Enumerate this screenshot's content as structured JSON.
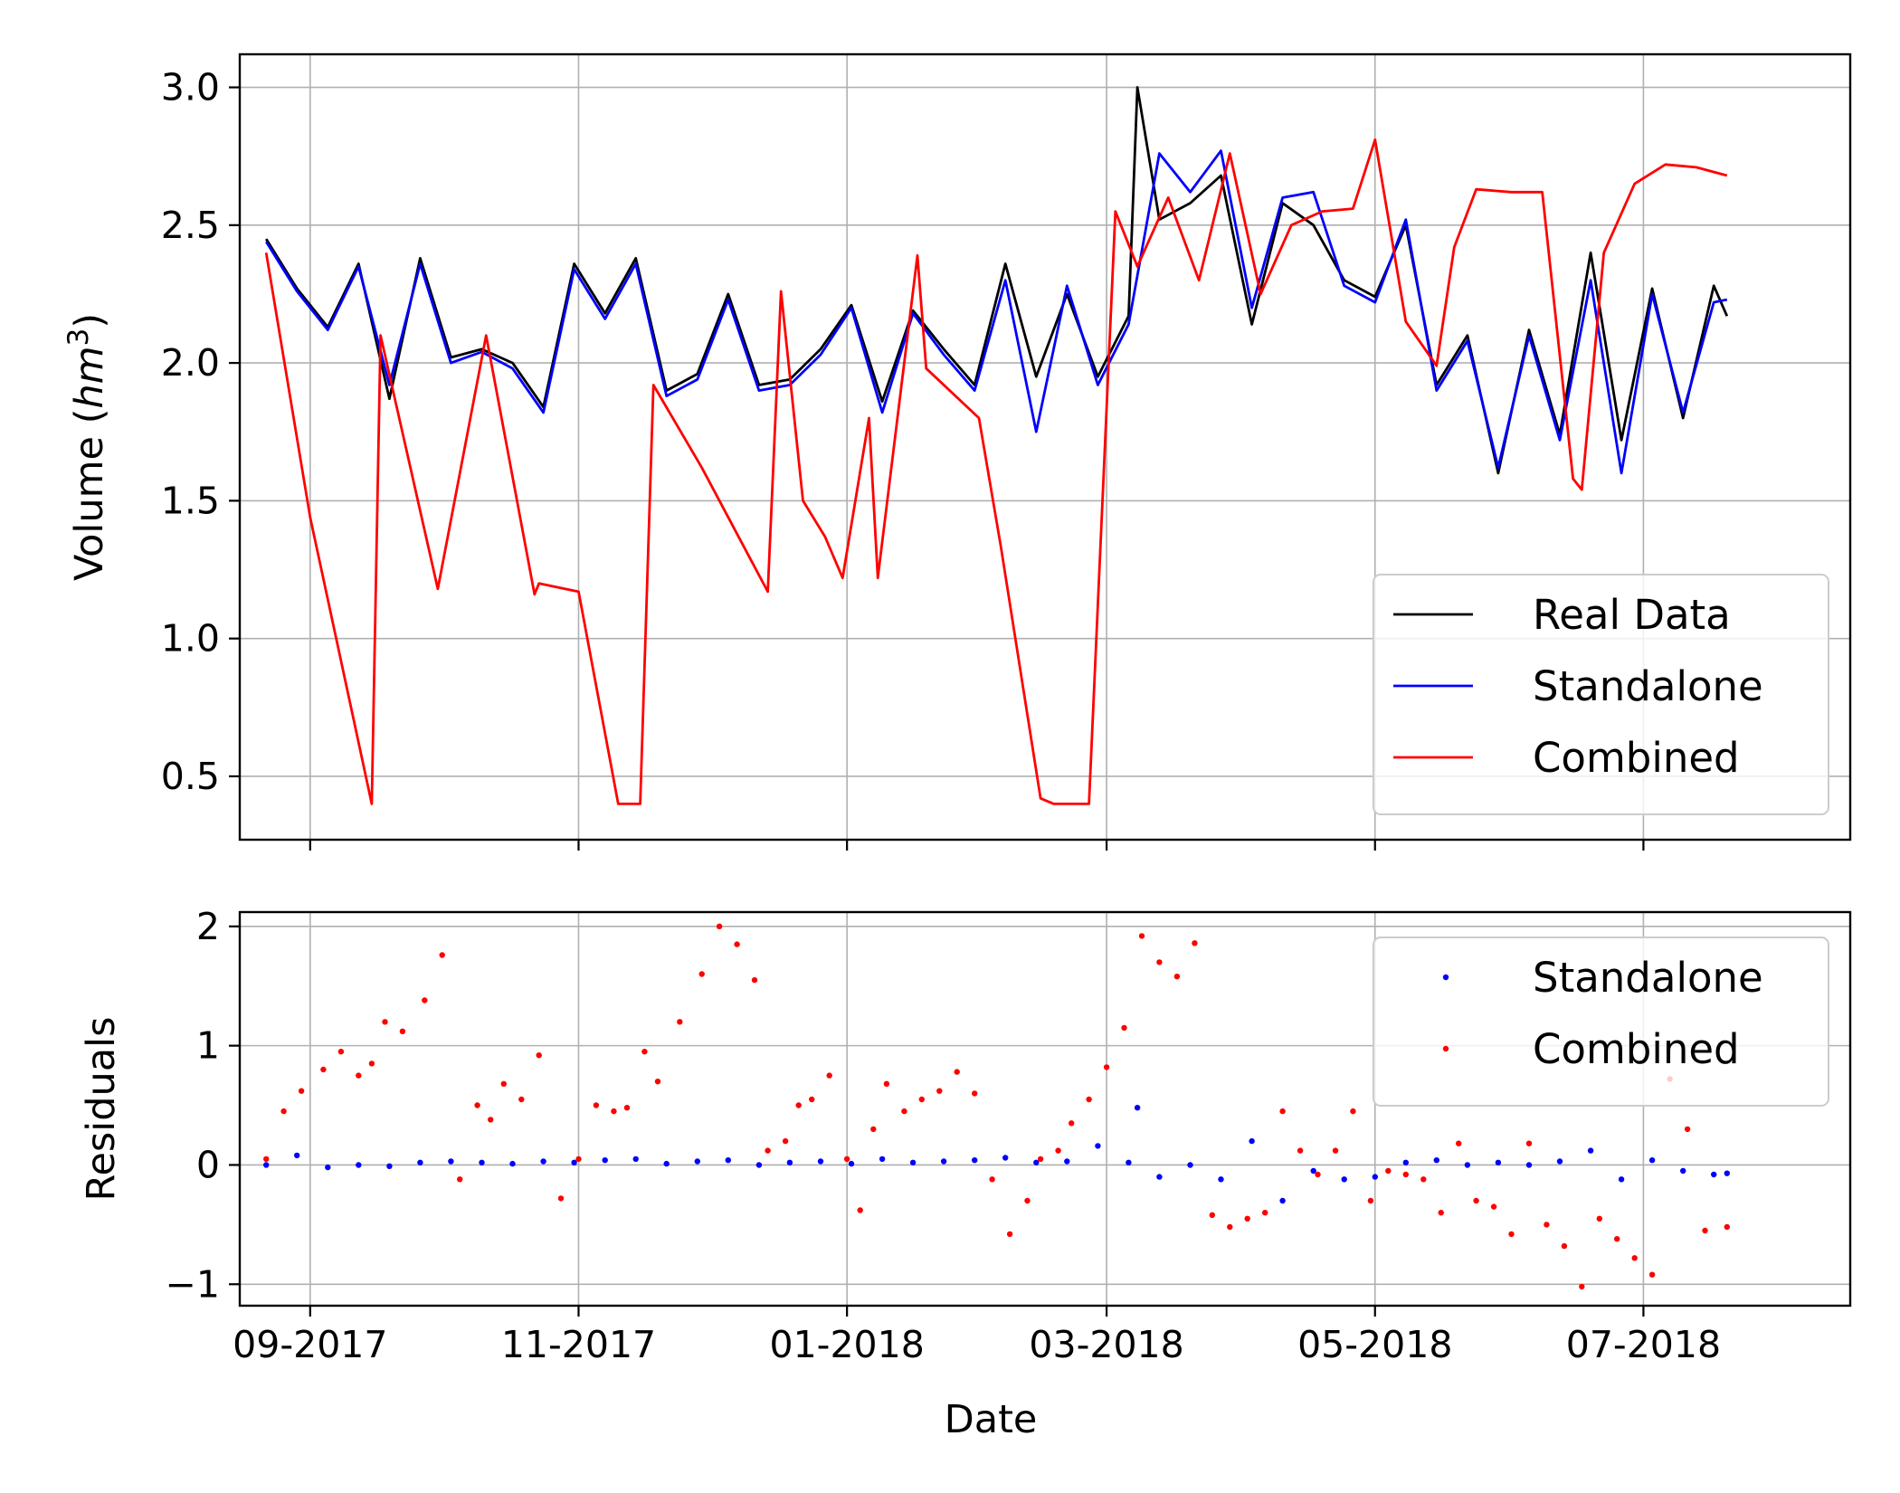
{
  "chart_data": [
    {
      "type": "line",
      "xlabel": "",
      "ylabel": "Volume (hm3)",
      "ylabel_parts": {
        "prefix": "Volume (",
        "var": "hm",
        "sup": "3",
        "suffix": ")"
      },
      "xlim": [
        "2017-08-16",
        "2018-08-17"
      ],
      "ylim": [
        0.27,
        3.12
      ],
      "yticks": [
        "0.5",
        "1.0",
        "1.5",
        "2.0",
        "2.5",
        "3.0"
      ],
      "ytick_values": [
        0.5,
        1.0,
        1.5,
        2.0,
        2.5,
        3.0
      ],
      "xticks": [
        "2017-09-01",
        "2017-11-01",
        "2018-01-01",
        "2018-03-01",
        "2018-05-01",
        "2018-07-01"
      ],
      "grid": true,
      "legend_position": "lower-right",
      "series": [
        {
          "name": "Real Data",
          "color": "#000000",
          "x": [
            "2017-08-22",
            "2017-08-29",
            "2017-09-05",
            "2017-09-12",
            "2017-09-19",
            "2017-09-26",
            "2017-10-03",
            "2017-10-10",
            "2017-10-17",
            "2017-10-24",
            "2017-10-31",
            "2017-11-07",
            "2017-11-14",
            "2017-11-21",
            "2017-11-28",
            "2017-12-05",
            "2017-12-12",
            "2017-12-19",
            "2017-12-26",
            "2018-01-02",
            "2018-01-09",
            "2018-01-16",
            "2018-01-23",
            "2018-01-30",
            "2018-02-06",
            "2018-02-13",
            "2018-02-20",
            "2018-02-27",
            "2018-03-06",
            "2018-03-08",
            "2018-03-13",
            "2018-03-20",
            "2018-03-27",
            "2018-04-03",
            "2018-04-10",
            "2018-04-17",
            "2018-04-24",
            "2018-05-01",
            "2018-05-08",
            "2018-05-15",
            "2018-05-22",
            "2018-05-29",
            "2018-06-05",
            "2018-06-12",
            "2018-06-19",
            "2018-06-26",
            "2018-07-03",
            "2018-07-10",
            "2018-07-17",
            "2018-07-20"
          ],
          "values": [
            2.45,
            2.27,
            2.13,
            2.36,
            1.87,
            2.38,
            2.02,
            2.05,
            2.0,
            1.84,
            2.36,
            2.18,
            2.38,
            1.9,
            1.96,
            2.25,
            1.92,
            1.94,
            2.05,
            2.21,
            1.86,
            2.19,
            2.05,
            1.92,
            2.36,
            1.95,
            2.25,
            1.95,
            2.17,
            3.0,
            2.52,
            2.58,
            2.68,
            2.14,
            2.58,
            2.5,
            2.3,
            2.24,
            2.5,
            1.92,
            2.1,
            1.6,
            2.12,
            1.74,
            2.4,
            1.72,
            2.27,
            1.8,
            2.28,
            2.17
          ]
        },
        {
          "name": "Standalone",
          "color": "#0000ff",
          "x": [
            "2017-08-22",
            "2017-08-29",
            "2017-09-05",
            "2017-09-12",
            "2017-09-19",
            "2017-09-26",
            "2017-10-03",
            "2017-10-10",
            "2017-10-17",
            "2017-10-24",
            "2017-10-31",
            "2017-11-07",
            "2017-11-14",
            "2017-11-21",
            "2017-11-28",
            "2017-12-05",
            "2017-12-12",
            "2017-12-19",
            "2017-12-26",
            "2018-01-02",
            "2018-01-09",
            "2018-01-16",
            "2018-01-23",
            "2018-01-30",
            "2018-02-06",
            "2018-02-13",
            "2018-02-20",
            "2018-02-27",
            "2018-03-06",
            "2018-03-13",
            "2018-03-20",
            "2018-03-27",
            "2018-04-03",
            "2018-04-10",
            "2018-04-17",
            "2018-04-24",
            "2018-05-01",
            "2018-05-08",
            "2018-05-15",
            "2018-05-22",
            "2018-05-29",
            "2018-06-05",
            "2018-06-12",
            "2018-06-19",
            "2018-06-26",
            "2018-07-03",
            "2018-07-10",
            "2018-07-17",
            "2018-07-20"
          ],
          "values": [
            2.44,
            2.26,
            2.12,
            2.35,
            1.92,
            2.36,
            2.0,
            2.04,
            1.98,
            1.82,
            2.34,
            2.16,
            2.36,
            1.88,
            1.94,
            2.23,
            1.9,
            1.92,
            2.03,
            2.2,
            1.82,
            2.18,
            2.03,
            1.9,
            2.3,
            1.75,
            2.28,
            1.92,
            2.14,
            2.76,
            2.62,
            2.77,
            2.2,
            2.6,
            2.62,
            2.28,
            2.22,
            2.52,
            1.9,
            2.08,
            1.62,
            2.1,
            1.72,
            2.3,
            1.6,
            2.25,
            1.82,
            2.22,
            2.23
          ]
        },
        {
          "name": "Combined",
          "color": "#ff0000",
          "x": [
            "2017-08-22",
            "2017-09-01",
            "2017-09-15",
            "2017-09-17",
            "2017-09-30",
            "2017-10-11",
            "2017-10-22",
            "2017-10-23",
            "2017-11-01",
            "2017-11-10",
            "2017-11-15",
            "2017-11-18",
            "2017-11-29",
            "2017-12-14",
            "2017-12-17",
            "2017-12-22",
            "2017-12-27",
            "2017-12-31",
            "2018-01-06",
            "2018-01-08",
            "2018-01-17",
            "2018-01-19",
            "2018-01-31",
            "2018-02-05",
            "2018-02-14",
            "2018-02-17",
            "2018-02-25",
            "2018-03-03",
            "2018-03-08",
            "2018-03-15",
            "2018-03-22",
            "2018-03-29",
            "2018-04-05",
            "2018-04-12",
            "2018-04-19",
            "2018-04-26",
            "2018-05-01",
            "2018-05-08",
            "2018-05-15",
            "2018-05-19",
            "2018-05-24",
            "2018-06-01",
            "2018-06-08",
            "2018-06-15",
            "2018-06-17",
            "2018-06-22",
            "2018-06-29",
            "2018-07-06",
            "2018-07-13",
            "2018-07-20"
          ],
          "values": [
            2.4,
            1.44,
            0.4,
            2.1,
            1.18,
            2.1,
            1.16,
            1.2,
            1.17,
            0.4,
            0.4,
            1.92,
            1.62,
            1.17,
            2.26,
            1.5,
            1.37,
            1.22,
            1.8,
            1.22,
            2.39,
            1.98,
            1.8,
            1.33,
            0.42,
            0.4,
            0.4,
            2.55,
            2.35,
            2.6,
            2.3,
            2.76,
            2.25,
            2.5,
            2.55,
            2.56,
            2.81,
            2.15,
            1.99,
            2.42,
            2.63,
            2.62,
            2.62,
            1.58,
            1.54,
            2.4,
            2.65,
            2.72,
            2.71,
            2.68
          ]
        }
      ]
    },
    {
      "type": "scatter",
      "xlabel": "Date",
      "ylabel": "Residuals",
      "xlim": [
        "2017-08-16",
        "2018-08-17"
      ],
      "ylim": [
        -1.18,
        2.12
      ],
      "yticks": [
        "−1",
        "0",
        "1",
        "2"
      ],
      "ytick_values": [
        -1,
        0,
        1,
        2
      ],
      "xticks": [
        "2017-09-01",
        "2017-11-01",
        "2018-01-01",
        "2018-03-01",
        "2018-05-01",
        "2018-07-01"
      ],
      "xtick_labels": [
        "09-2017",
        "11-2017",
        "01-2018",
        "03-2018",
        "05-2018",
        "07-2018"
      ],
      "grid": true,
      "legend_position": "upper-right",
      "series": [
        {
          "name": "Standalone",
          "color": "#0000ff",
          "x": [
            "2017-08-22",
            "2017-08-29",
            "2017-09-05",
            "2017-09-12",
            "2017-09-19",
            "2017-09-26",
            "2017-10-03",
            "2017-10-10",
            "2017-10-17",
            "2017-10-24",
            "2017-10-31",
            "2017-11-07",
            "2017-11-14",
            "2017-11-21",
            "2017-11-28",
            "2017-12-05",
            "2017-12-12",
            "2017-12-19",
            "2017-12-26",
            "2018-01-02",
            "2018-01-09",
            "2018-01-16",
            "2018-01-23",
            "2018-01-30",
            "2018-02-06",
            "2018-02-13",
            "2018-02-20",
            "2018-02-27",
            "2018-03-06",
            "2018-03-08",
            "2018-03-13",
            "2018-03-20",
            "2018-03-27",
            "2018-04-03",
            "2018-04-10",
            "2018-04-17",
            "2018-04-24",
            "2018-05-01",
            "2018-05-08",
            "2018-05-15",
            "2018-05-22",
            "2018-05-29",
            "2018-06-05",
            "2018-06-12",
            "2018-06-19",
            "2018-06-26",
            "2018-07-03",
            "2018-07-10",
            "2018-07-17",
            "2018-07-20"
          ],
          "values": [
            0.0,
            0.08,
            -0.02,
            0.0,
            -0.01,
            0.02,
            0.03,
            0.02,
            0.01,
            0.03,
            0.02,
            0.04,
            0.05,
            0.01,
            0.03,
            0.04,
            0.0,
            0.02,
            0.03,
            0.01,
            0.05,
            0.02,
            0.03,
            0.04,
            0.06,
            0.02,
            0.03,
            0.16,
            0.02,
            0.48,
            -0.1,
            0.0,
            -0.12,
            0.2,
            -0.3,
            -0.05,
            -0.12,
            -0.1,
            0.02,
            0.04,
            0.0,
            0.02,
            0.0,
            0.03,
            0.12,
            -0.12,
            0.04,
            -0.05,
            -0.08,
            -0.07
          ]
        },
        {
          "name": "Combined",
          "color": "#ff0000",
          "x": [
            "2017-08-22",
            "2017-08-26",
            "2017-08-30",
            "2017-09-04",
            "2017-09-08",
            "2017-09-12",
            "2017-09-15",
            "2017-09-18",
            "2017-09-22",
            "2017-09-27",
            "2017-10-01",
            "2017-10-05",
            "2017-10-09",
            "2017-10-12",
            "2017-10-15",
            "2017-10-19",
            "2017-10-23",
            "2017-10-28",
            "2017-11-01",
            "2017-11-05",
            "2017-11-09",
            "2017-11-12",
            "2017-11-16",
            "2017-11-19",
            "2017-11-24",
            "2017-11-29",
            "2017-12-03",
            "2017-12-07",
            "2017-12-11",
            "2017-12-14",
            "2017-12-18",
            "2017-12-21",
            "2017-12-24",
            "2017-12-28",
            "2018-01-01",
            "2018-01-04",
            "2018-01-07",
            "2018-01-10",
            "2018-01-14",
            "2018-01-18",
            "2018-01-22",
            "2018-01-26",
            "2018-01-30",
            "2018-02-03",
            "2018-02-07",
            "2018-02-11",
            "2018-02-14",
            "2018-02-18",
            "2018-02-21",
            "2018-02-25",
            "2018-03-01",
            "2018-03-05",
            "2018-03-09",
            "2018-03-13",
            "2018-03-17",
            "2018-03-21",
            "2018-03-25",
            "2018-03-29",
            "2018-04-02",
            "2018-04-06",
            "2018-04-10",
            "2018-04-14",
            "2018-04-18",
            "2018-04-22",
            "2018-04-26",
            "2018-04-30",
            "2018-05-04",
            "2018-05-08",
            "2018-05-12",
            "2018-05-16",
            "2018-05-20",
            "2018-05-24",
            "2018-05-28",
            "2018-06-01",
            "2018-06-05",
            "2018-06-09",
            "2018-06-13",
            "2018-06-17",
            "2018-06-21",
            "2018-06-25",
            "2018-06-29",
            "2018-07-03",
            "2018-07-07",
            "2018-07-11",
            "2018-07-15",
            "2018-07-20"
          ],
          "values": [
            0.05,
            0.45,
            0.62,
            0.8,
            0.95,
            0.75,
            0.85,
            1.2,
            1.12,
            1.38,
            1.76,
            -0.12,
            0.5,
            0.38,
            0.68,
            0.55,
            0.92,
            -0.28,
            0.05,
            0.5,
            0.45,
            0.48,
            0.95,
            0.7,
            1.2,
            1.6,
            2.0,
            1.85,
            1.55,
            0.12,
            0.2,
            0.5,
            0.55,
            0.75,
            0.05,
            -0.38,
            0.3,
            0.68,
            0.45,
            0.55,
            0.62,
            0.78,
            0.6,
            -0.12,
            -0.58,
            -0.3,
            0.05,
            0.12,
            0.35,
            0.55,
            0.82,
            1.15,
            1.92,
            1.7,
            1.58,
            1.86,
            -0.42,
            -0.52,
            -0.45,
            -0.4,
            0.45,
            0.12,
            -0.08,
            0.12,
            0.45,
            -0.3,
            -0.05,
            -0.08,
            -0.12,
            -0.4,
            0.18,
            -0.3,
            -0.35,
            -0.58,
            0.18,
            -0.5,
            -0.68,
            -1.02,
            -0.45,
            -0.62,
            -0.78,
            -0.92,
            0.72,
            0.3,
            -0.55,
            -0.52
          ]
        }
      ]
    }
  ]
}
